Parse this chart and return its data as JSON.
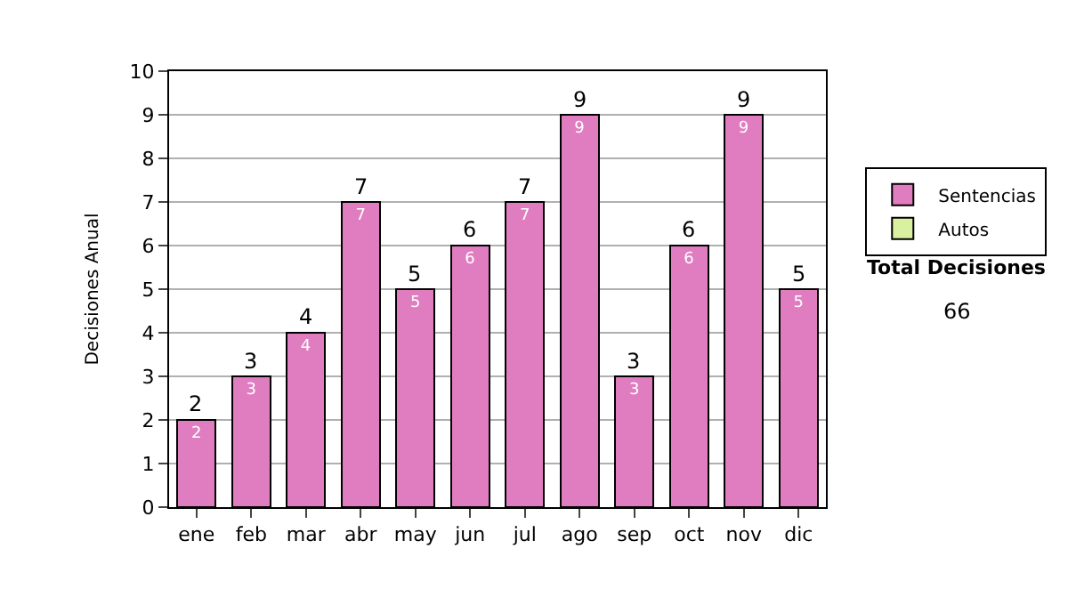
{
  "chart_data": {
    "type": "bar",
    "ylabel": "Decisiones Anual",
    "categories": [
      "ene",
      "feb",
      "mar",
      "abr",
      "may",
      "jun",
      "jul",
      "ago",
      "sep",
      "oct",
      "nov",
      "dic"
    ],
    "series": [
      {
        "name": "Sentencias",
        "color": "#e07cc0",
        "values": [
          2,
          3,
          4,
          7,
          5,
          6,
          7,
          9,
          3,
          6,
          9,
          5
        ]
      },
      {
        "name": "Autos",
        "color": "#d8f0a0",
        "values": [
          null,
          null,
          null,
          null,
          null,
          null,
          null,
          null,
          null,
          null,
          null,
          null
        ]
      }
    ],
    "stacked": true,
    "data_labels": true,
    "totals": [
      "2",
      "3",
      "4",
      "7",
      "5",
      "6",
      "7",
      "9",
      "3",
      "6",
      "9",
      "5"
    ],
    "ylim": [
      0,
      10
    ],
    "yticks": [
      0,
      1,
      2,
      3,
      4,
      5,
      6,
      7,
      8,
      9,
      10
    ],
    "grid": "y",
    "legend": "right",
    "annotations": [
      "Total Decisiones",
      "66"
    ]
  }
}
